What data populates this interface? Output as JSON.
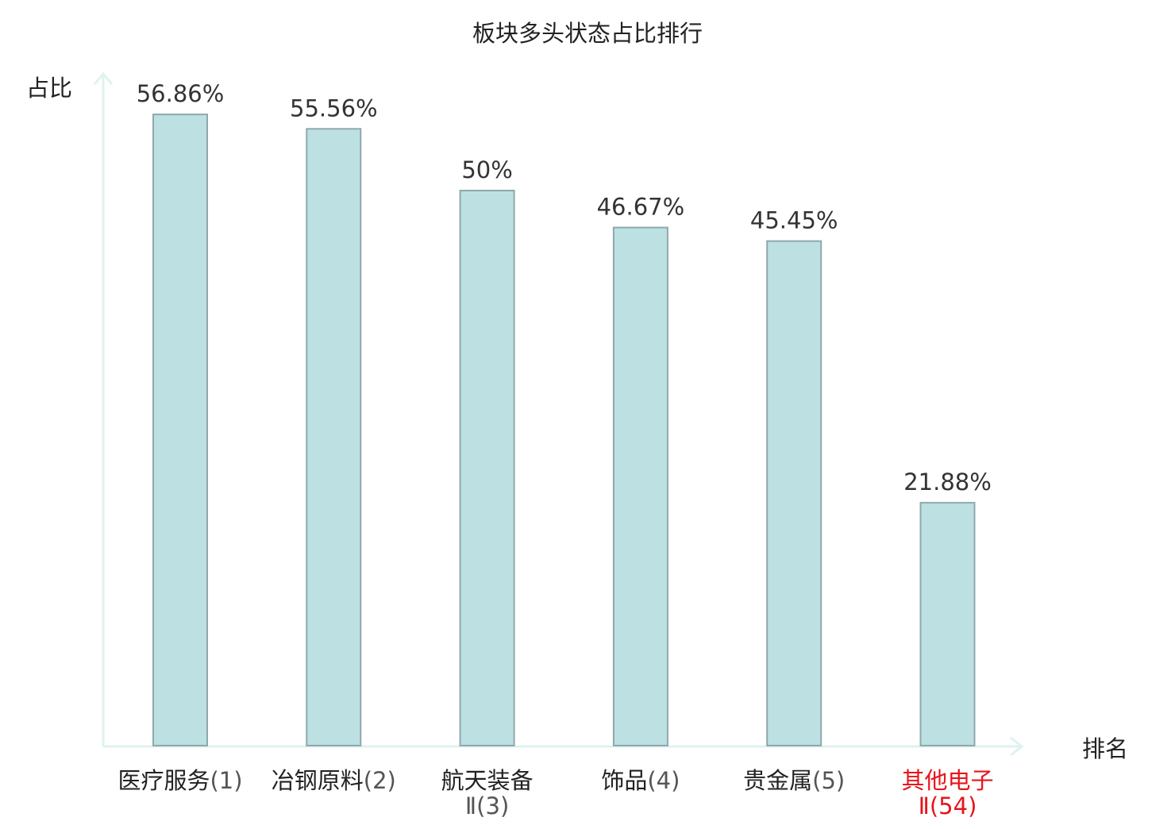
{
  "colors": {
    "bar_fill": "#bde0e3",
    "bar_stroke": "#8fa8ab",
    "axis": "#dff2ef",
    "text": "#333333",
    "highlight": "#e8141c",
    "title": "#222222"
  },
  "chart_data": {
    "type": "bar",
    "title": "板块多头状态占比排行",
    "xlabel": "排名",
    "ylabel": "占比",
    "ylim": [
      0,
      60
    ],
    "categories": [
      {
        "name": "医疗服务",
        "rank": "(1)",
        "highlight": false
      },
      {
        "name": "冶钢原料",
        "rank": "(2)",
        "highlight": false
      },
      {
        "name": "航天装备",
        "rank": "Ⅱ(3)",
        "highlight": false
      },
      {
        "name": "饰品",
        "rank": "(4)",
        "highlight": false
      },
      {
        "name": "贵金属",
        "rank": "(5)",
        "highlight": false
      },
      {
        "name": "其他电子",
        "rank": "Ⅱ(54)",
        "highlight": true
      }
    ],
    "values": [
      56.86,
      55.56,
      50,
      46.67,
      45.45,
      21.88
    ],
    "value_labels": [
      "56.86%",
      "55.56%",
      "50%",
      "46.67%",
      "45.45%",
      "21.88%"
    ],
    "grid": false,
    "legend": "none"
  }
}
